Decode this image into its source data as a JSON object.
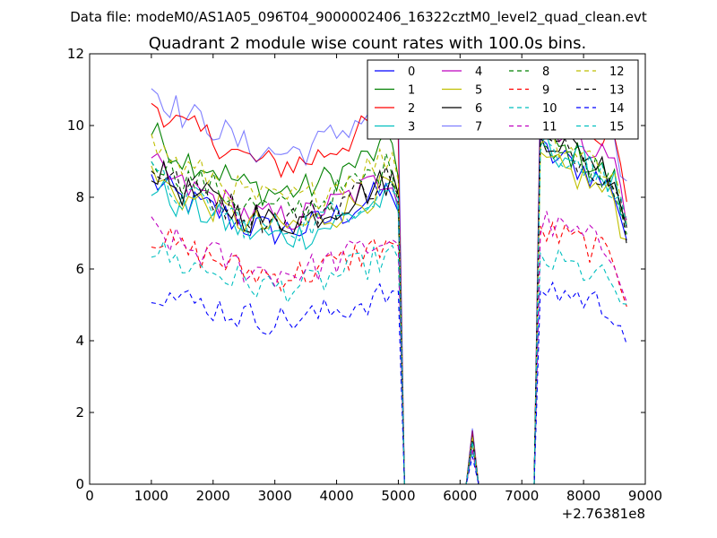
{
  "chart_data": {
    "type": "line",
    "suptitle": "Data file: modeM0/AS1A05_096T04_9000002406_16322cztM0_level2_quad_clean.evt",
    "title": "Quadrant 2 module wise count rates with 100.0s bins.",
    "xlabel": "",
    "ylabel": "",
    "x_offset_label": "+2.76381e8",
    "xlim": [
      0,
      9000
    ],
    "ylim": [
      0,
      12
    ],
    "x_ticks": [
      0,
      1000,
      2000,
      3000,
      4000,
      5000,
      6000,
      7000,
      8000,
      9000
    ],
    "x_tick_labels": [
      "0",
      "1000",
      "2000",
      "3000",
      "4000",
      "5000",
      "6000",
      "7000",
      "8000",
      "9000"
    ],
    "y_ticks": [
      0,
      2,
      4,
      6,
      8,
      10,
      12
    ],
    "y_tick_labels": [
      "0",
      "2",
      "4",
      "6",
      "8",
      "10",
      "12"
    ],
    "grid": false,
    "legend_position": "top-right",
    "legend_columns": 4,
    "profile": {
      "x": [
        1000,
        1500,
        2000,
        2500,
        3000,
        3500,
        4000,
        4500,
        4900,
        5000,
        5100,
        6000,
        6100,
        6200,
        6300,
        7000,
        7200,
        7300,
        7500,
        8000,
        8500,
        8700
      ],
      "shape": [
        1.0,
        0.93,
        0.9,
        0.85,
        0.83,
        0.84,
        0.88,
        0.93,
        0.97,
        0.9,
        0.0,
        0.0,
        0.0,
        0.14,
        0.0,
        0.0,
        0.0,
        1.08,
        1.06,
        1.02,
        0.95,
        0.8
      ],
      "gap_x": [
        5100,
        6100,
        6300,
        7200
      ]
    },
    "series": [
      {
        "name": "0",
        "color": "#0000ff",
        "dash": "solid",
        "level": 8.5,
        "hi": 9.3,
        "alpha": 1.0
      },
      {
        "name": "1",
        "color": "#008000",
        "dash": "solid",
        "level": 9.8,
        "hi": 9.6,
        "alpha": 1.0
      },
      {
        "name": "2",
        "color": "#ff0000",
        "dash": "solid",
        "level": 10.7,
        "hi": 10.8,
        "alpha": 1.0
      },
      {
        "name": "3",
        "color": "#00bfbf",
        "dash": "solid",
        "level": 8.3,
        "hi": 9.5,
        "alpha": 1.0
      },
      {
        "name": "4",
        "color": "#bf00bf",
        "dash": "solid",
        "level": 8.9,
        "hi": 10.2,
        "alpha": 1.0
      },
      {
        "name": "5",
        "color": "#bfbf00",
        "dash": "solid",
        "level": 8.6,
        "hi": 9.0,
        "alpha": 1.0
      },
      {
        "name": "6",
        "color": "#000000",
        "dash": "solid",
        "level": 8.8,
        "hi": 9.8,
        "alpha": 1.0
      },
      {
        "name": "7",
        "color": "#0000ff",
        "dash": "solid",
        "level": 11.1,
        "hi": 11.0,
        "alpha": 0.5
      },
      {
        "name": "8",
        "color": "#008000",
        "dash": "dashed",
        "level": 9.2,
        "hi": 9.6,
        "alpha": 1.0
      },
      {
        "name": "9",
        "color": "#ff0000",
        "dash": "dashed",
        "level": 7.0,
        "hi": 7.1,
        "alpha": 1.0
      },
      {
        "name": "10",
        "color": "#00bfbf",
        "dash": "dashed",
        "level": 6.6,
        "hi": 6.3,
        "alpha": 1.0
      },
      {
        "name": "11",
        "color": "#bf00bf",
        "dash": "dashed",
        "level": 7.1,
        "hi": 7.3,
        "alpha": 1.0
      },
      {
        "name": "12",
        "color": "#bfbf00",
        "dash": "dashed",
        "level": 9.5,
        "hi": 9.8,
        "alpha": 1.0
      },
      {
        "name": "13",
        "color": "#000000",
        "dash": "dashed",
        "level": 8.9,
        "hi": 9.6,
        "alpha": 1.0
      },
      {
        "name": "14",
        "color": "#0000ff",
        "dash": "dashed",
        "level": 5.5,
        "hi": 5.5,
        "alpha": 1.0
      },
      {
        "name": "15",
        "color": "#00bfbf",
        "dash": "dashed",
        "level": 8.6,
        "hi": 9.5,
        "alpha": 1.0
      }
    ]
  }
}
